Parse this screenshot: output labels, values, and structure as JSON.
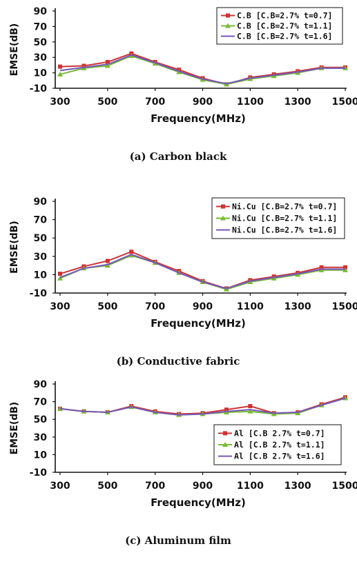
{
  "chart_data": [
    {
      "type": "line",
      "caption": "(a)  Carbon  black",
      "xlabel": "Frequency(MHz)",
      "ylabel": "EMSE(dB)",
      "xlim": [
        300,
        1500
      ],
      "ylim": [
        -10,
        90
      ],
      "xticks": [
        "300",
        "500",
        "700",
        "900",
        "1100",
        "1300",
        "1500"
      ],
      "yticks": [
        "90",
        "70",
        "50",
        "30",
        "10",
        "-10"
      ],
      "legend_position": "top-right",
      "grid": false,
      "x": [
        300,
        400,
        500,
        600,
        700,
        800,
        900,
        1000,
        1100,
        1200,
        1300,
        1400,
        1500
      ],
      "series": [
        {
          "name": "C.B [C.B=2.7%  t=0.7]",
          "color": "#cc3333",
          "marker": "square",
          "values": [
            18,
            19,
            24,
            35,
            24,
            14,
            3,
            -5,
            4,
            8,
            12,
            17,
            17
          ]
        },
        {
          "name": "C.B [C.B=2.7%  t=1.1]",
          "color": "#77bb33",
          "marker": "triangle",
          "values": [
            8,
            16,
            19,
            32,
            22,
            11,
            1,
            -5,
            2,
            6,
            10,
            16,
            16
          ]
        },
        {
          "name": "C.B [C.B=2.7%  t=1.6]",
          "color": "#7755bb",
          "marker": "none",
          "values": [
            13,
            17,
            21,
            33,
            23,
            12,
            2,
            -4,
            3,
            7,
            11,
            16,
            16
          ]
        }
      ]
    },
    {
      "type": "line",
      "caption": "(b)  Conductive  fabric",
      "xlabel": "Frequency(MHz)",
      "ylabel": "EMSE(dB)",
      "xlim": [
        300,
        1500
      ],
      "ylim": [
        -10,
        90
      ],
      "xticks": [
        "300",
        "500",
        "700",
        "900",
        "1100",
        "1300",
        "1500"
      ],
      "yticks": [
        "90",
        "70",
        "50",
        "30",
        "10",
        "-10"
      ],
      "legend_position": "top-right",
      "grid": false,
      "x": [
        300,
        400,
        500,
        600,
        700,
        800,
        900,
        1000,
        1100,
        1200,
        1300,
        1400,
        1500
      ],
      "series": [
        {
          "name": "Ni.Cu [C.B=2.7%  t=0.7]",
          "color": "#cc3333",
          "marker": "square",
          "values": [
            11,
            19,
            25,
            35,
            24,
            14,
            3,
            -5,
            4,
            8,
            12,
            18,
            18
          ]
        },
        {
          "name": "Ni.Cu [C.B=2.7%  t=1.1]",
          "color": "#77bb33",
          "marker": "triangle",
          "values": [
            6,
            17,
            20,
            31,
            23,
            12,
            2,
            -6,
            2,
            6,
            10,
            15,
            15
          ]
        },
        {
          "name": "Ni.Cu [C.B=2.7%  t=1.6]",
          "color": "#7755bb",
          "marker": "none",
          "values": [
            7,
            17,
            21,
            32,
            23,
            12,
            2,
            -5,
            3,
            7,
            11,
            16,
            16
          ]
        }
      ]
    },
    {
      "type": "line",
      "caption": "(c)  Aluminum  film",
      "xlabel": "Frequency(MHz)",
      "ylabel": "EMSE(dB)",
      "xlim": [
        300,
        1500
      ],
      "ylim": [
        -10,
        90
      ],
      "xticks": [
        "300",
        "500",
        "700",
        "900",
        "1100",
        "1300",
        "1500"
      ],
      "yticks": [
        "90",
        "70",
        "50",
        "30",
        "10",
        "-10"
      ],
      "legend_position": "bottom-right",
      "grid": false,
      "x": [
        300,
        400,
        500,
        600,
        700,
        800,
        900,
        1000,
        1100,
        1200,
        1300,
        1400,
        1500
      ],
      "series": [
        {
          "name": "Al [C.B 2.7%  t=0.7]",
          "color": "#cc3333",
          "marker": "square",
          "values": [
            62,
            59,
            58,
            65,
            59,
            56,
            57,
            61,
            65,
            57,
            58,
            67,
            75
          ]
        },
        {
          "name": "Al [C.B 2.7%  t=1.1]",
          "color": "#77bb33",
          "marker": "triangle",
          "values": [
            62,
            59,
            58,
            64,
            58,
            55,
            56,
            58,
            59,
            56,
            57,
            66,
            74
          ]
        },
        {
          "name": "Al [C.B 2.7%  t=1.6]",
          "color": "#7755bb",
          "marker": "none",
          "values": [
            62,
            59,
            58,
            64,
            58,
            55,
            56,
            59,
            61,
            57,
            58,
            66,
            74
          ]
        }
      ]
    }
  ]
}
